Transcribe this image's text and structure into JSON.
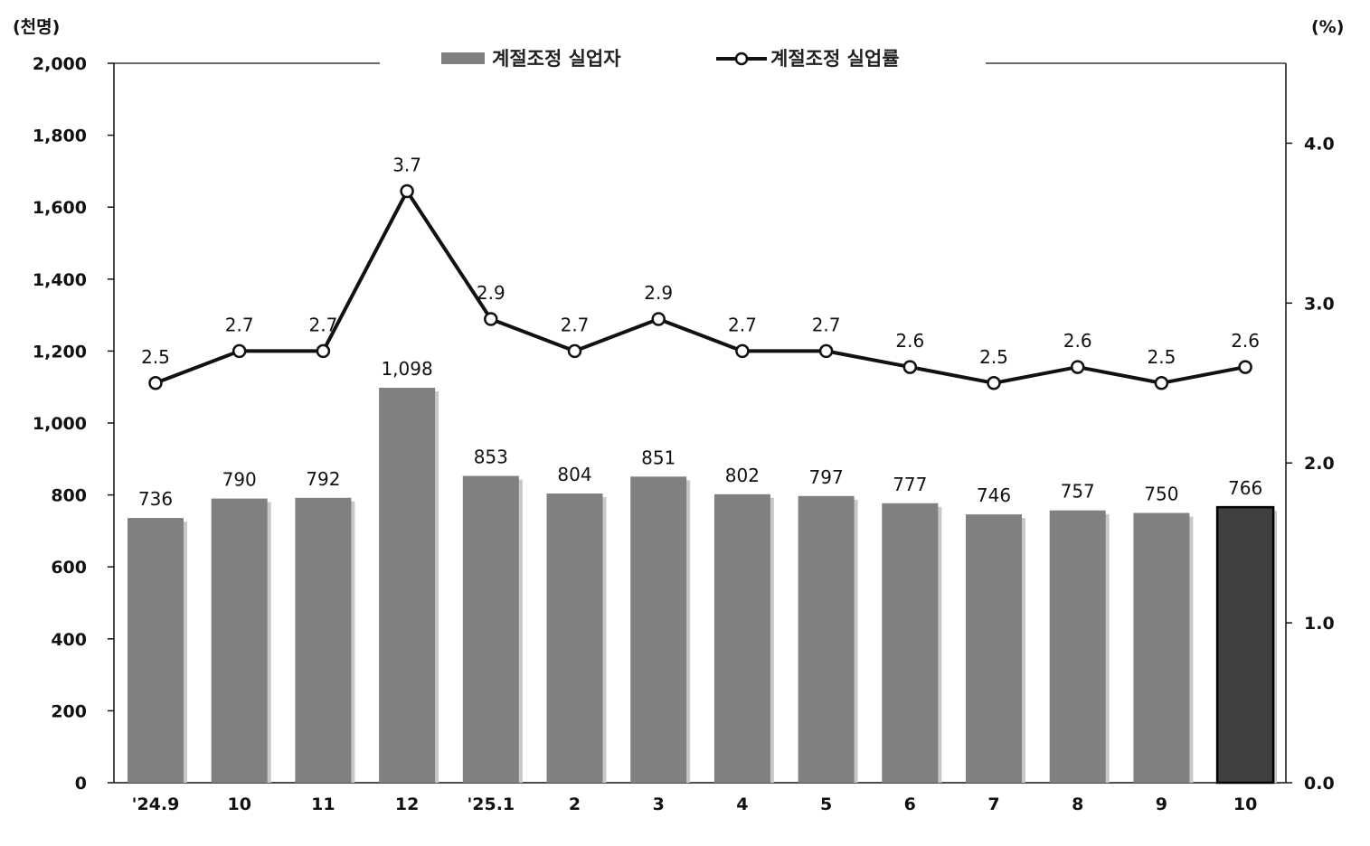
{
  "chart_data": {
    "type": "bar+line",
    "title": "",
    "categories": [
      "'24.9",
      "10",
      "11",
      "12",
      "'25.1",
      "2",
      "3",
      "4",
      "5",
      "6",
      "7",
      "8",
      "9",
      "10"
    ],
    "left_axis": {
      "unit": "(천명)",
      "ylim": [
        0,
        2000
      ],
      "ticks": [
        "0",
        "200",
        "400",
        "600",
        "800",
        "1,000",
        "1,200",
        "1,400",
        "1,600",
        "1,800",
        "2,000"
      ]
    },
    "right_axis": {
      "unit": "(%)",
      "ylim": [
        0,
        4.5
      ],
      "ticks": [
        "0.0",
        "1.0",
        "2.0",
        "3.0",
        "4.0"
      ]
    },
    "series": [
      {
        "name": "계절조정 실업자",
        "type": "bar",
        "axis": "left",
        "values": [
          736,
          790,
          792,
          1098,
          853,
          804,
          851,
          802,
          797,
          777,
          746,
          757,
          750,
          766
        ],
        "labels": [
          "736",
          "790",
          "792",
          "1,098",
          "853",
          "804",
          "851",
          "802",
          "797",
          "777",
          "746",
          "757",
          "750",
          "766"
        ],
        "color": "#808080",
        "highlight_color": "#404040",
        "highlight_index": 13
      },
      {
        "name": "계절조정 실업률",
        "type": "line",
        "axis": "right",
        "values": [
          2.5,
          2.7,
          2.7,
          3.7,
          2.9,
          2.7,
          2.9,
          2.7,
          2.7,
          2.6,
          2.5,
          2.6,
          2.5,
          2.6
        ],
        "labels": [
          "2.5",
          "2.7",
          "2.7",
          "3.7",
          "2.9",
          "2.7",
          "2.9",
          "2.7",
          "2.7",
          "2.6",
          "2.5",
          "2.6",
          "2.5",
          "2.6"
        ],
        "color": "#111111",
        "marker": "open-circle"
      }
    ],
    "legend_position": "top-center",
    "grid": false
  }
}
